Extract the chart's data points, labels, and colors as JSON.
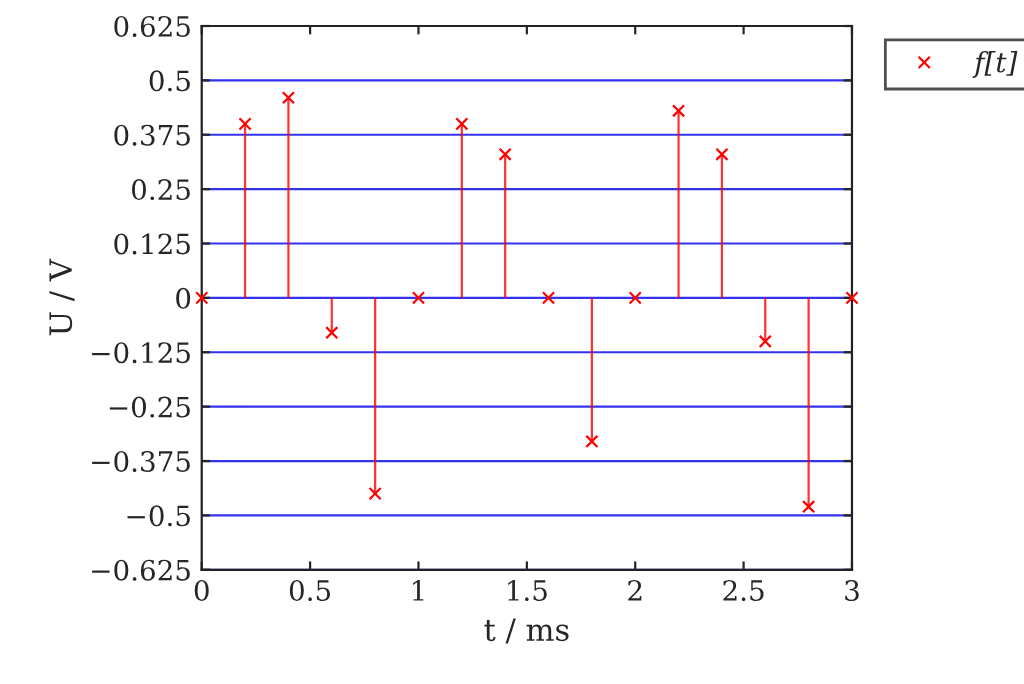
{
  "chart_data": {
    "type": "lollipop",
    "xlabel": "t / ms",
    "ylabel": "U / V",
    "x": [
      0,
      0.2,
      0.4,
      0.6,
      0.8,
      1.0,
      1.2,
      1.4,
      1.6,
      1.8,
      2.0,
      2.2,
      2.4,
      2.6,
      2.8,
      3.0
    ],
    "series": [
      {
        "name": "f[t]",
        "color": "#ff0000",
        "values": [
          0,
          0.4,
          0.46,
          -0.08,
          -0.45,
          0,
          0.4,
          0.33,
          0,
          -0.33,
          0,
          0.43,
          0.33,
          -0.1,
          -0.48,
          0
        ]
      }
    ],
    "xlim": [
      0,
      3
    ],
    "xticks": [
      0,
      0.5,
      1,
      1.5,
      2,
      2.5,
      3
    ],
    "ylim": [
      -0.625,
      0.625
    ],
    "yticks": [
      {
        "value": -0.625,
        "label": "−0.625"
      },
      {
        "value": -0.5,
        "label": "−0.5"
      },
      {
        "value": -0.375,
        "label": "−0.375"
      },
      {
        "value": -0.25,
        "label": "−0.25"
      },
      {
        "value": -0.125,
        "label": "−0.125"
      },
      0,
      0.125,
      0.25,
      0.375,
      0.5,
      0.625
    ],
    "grid": "y",
    "legend": "top right",
    "marker": "cross"
  }
}
